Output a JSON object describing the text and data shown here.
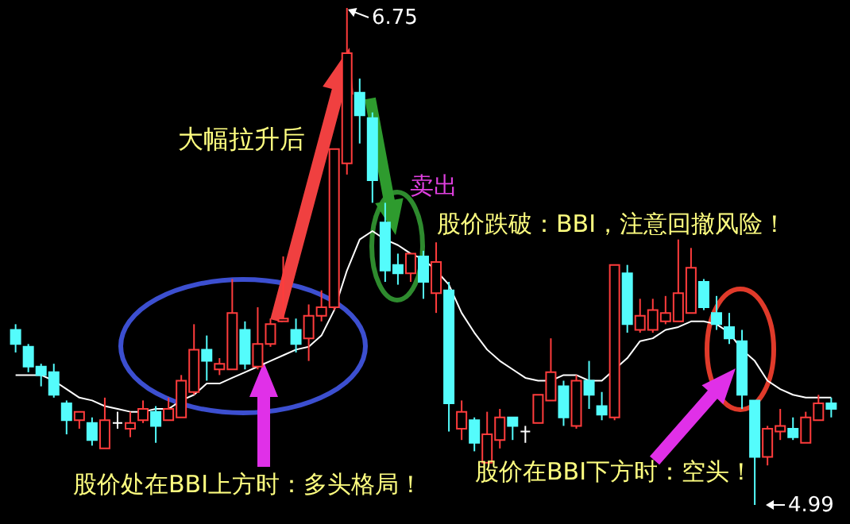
{
  "chart_data": {
    "type": "candlestick",
    "categories": [
      null,
      null,
      null,
      null,
      null,
      null,
      null,
      null,
      null,
      null,
      null,
      null,
      null,
      null,
      null,
      null,
      null,
      null,
      null,
      null,
      null,
      null,
      null,
      null,
      null,
      null,
      null,
      null,
      null,
      null,
      null,
      null,
      null,
      null,
      null,
      null,
      null,
      null,
      null,
      null,
      null,
      null,
      null,
      null,
      null,
      null,
      null,
      null,
      null,
      null,
      null,
      null,
      null,
      null,
      null,
      null,
      null,
      null,
      null,
      null,
      null,
      null,
      null,
      null,
      null
    ],
    "ohlc": [
      [
        5.61,
        5.63,
        5.53,
        5.56
      ],
      [
        5.55,
        5.56,
        5.46,
        5.48
      ],
      [
        5.48,
        5.49,
        5.41,
        5.45
      ],
      [
        5.46,
        5.49,
        5.37,
        5.38
      ],
      [
        5.35,
        5.36,
        5.24,
        5.29
      ],
      [
        5.29,
        5.32,
        5.26,
        5.32
      ],
      [
        5.28,
        5.3,
        5.2,
        5.22
      ],
      [
        5.19,
        5.37,
        5.19,
        5.29
      ],
      [
        5.28,
        5.32,
        5.26,
        5.28
      ],
      [
        5.26,
        5.32,
        5.23,
        5.28
      ],
      [
        5.29,
        5.36,
        5.28,
        5.33
      ],
      [
        5.32,
        5.34,
        5.21,
        5.27
      ],
      [
        5.29,
        5.37,
        5.29,
        5.33
      ],
      [
        5.3,
        5.45,
        5.3,
        5.43
      ],
      [
        5.39,
        5.63,
        5.38,
        5.54
      ],
      [
        5.54,
        5.59,
        5.43,
        5.5
      ],
      [
        5.47,
        5.51,
        5.45,
        5.49
      ],
      [
        5.47,
        5.79,
        5.47,
        5.67
      ],
      [
        5.61,
        5.64,
        5.47,
        5.49
      ],
      [
        5.48,
        5.69,
        5.47,
        5.56
      ],
      [
        5.56,
        5.65,
        5.55,
        5.63
      ],
      [
        5.64,
        5.87,
        5.64,
        5.65
      ],
      [
        5.61,
        5.65,
        5.53,
        5.56
      ],
      [
        5.58,
        5.7,
        5.5,
        5.66
      ],
      [
        5.66,
        5.75,
        5.64,
        5.69
      ],
      [
        5.69,
        6.25,
        5.68,
        6.25
      ],
      [
        6.2,
        6.75,
        6.16,
        6.59
      ],
      [
        6.45,
        6.5,
        6.27,
        6.37
      ],
      [
        6.36,
        6.38,
        6.06,
        6.14
      ],
      [
        5.99,
        6.06,
        5.78,
        5.82
      ],
      [
        5.84,
        5.88,
        5.77,
        5.81
      ],
      [
        5.81,
        5.88,
        5.78,
        5.88
      ],
      [
        5.87,
        5.89,
        5.72,
        5.78
      ],
      [
        5.74,
        5.92,
        5.67,
        5.85
      ],
      [
        5.75,
        5.78,
        5.25,
        5.35
      ],
      [
        5.26,
        5.36,
        5.22,
        5.32
      ],
      [
        5.29,
        5.3,
        5.18,
        5.21
      ],
      [
        5.14,
        5.32,
        5.14,
        5.24
      ],
      [
        5.22,
        5.33,
        5.19,
        5.3
      ],
      [
        5.3,
        5.3,
        5.22,
        5.27
      ],
      [
        5.25,
        5.27,
        5.21,
        5.25
      ],
      [
        5.28,
        5.38,
        5.28,
        5.38
      ],
      [
        5.36,
        5.58,
        5.36,
        5.46
      ],
      [
        5.41,
        5.43,
        5.27,
        5.3
      ],
      [
        5.27,
        5.45,
        5.26,
        5.43
      ],
      [
        5.43,
        5.5,
        5.33,
        5.38
      ],
      [
        5.34,
        5.39,
        5.29,
        5.31
      ],
      [
        5.3,
        5.84,
        5.29,
        5.84
      ],
      [
        5.81,
        5.84,
        5.6,
        5.63
      ],
      [
        5.61,
        5.72,
        5.6,
        5.66
      ],
      [
        5.61,
        5.72,
        5.6,
        5.68
      ],
      [
        5.64,
        5.73,
        5.63,
        5.67
      ],
      [
        5.64,
        5.93,
        5.64,
        5.74
      ],
      [
        5.67,
        5.9,
        5.67,
        5.83
      ],
      [
        5.78,
        5.79,
        5.68,
        5.69
      ],
      [
        5.67,
        5.73,
        5.61,
        5.63
      ],
      [
        5.62,
        5.67,
        5.56,
        5.58
      ],
      [
        5.57,
        5.61,
        5.33,
        5.38
      ],
      [
        5.36,
        5.36,
        4.99,
        5.16
      ],
      [
        5.16,
        5.27,
        5.13,
        5.26
      ],
      [
        5.25,
        5.33,
        5.22,
        5.27
      ],
      [
        5.26,
        5.3,
        5.22,
        5.23
      ],
      [
        5.21,
        5.32,
        5.21,
        5.3
      ],
      [
        5.29,
        5.38,
        5.29,
        5.35
      ],
      [
        5.35,
        5.37,
        5.3,
        5.33
      ]
    ],
    "colors": [
      "#54fcfc",
      "#54fcfc",
      "#54fcfc",
      "#54fcfc",
      "#54fcfc",
      "#ff3c3c",
      "#54fcfc",
      "#ff3c3c",
      "#ffffff",
      "#ff3c3c",
      "#ff3c3c",
      "#54fcfc",
      "#ff3c3c",
      "#ff3c3c",
      "#ff3c3c",
      "#54fcfc",
      "#ff3c3c",
      "#ff3c3c",
      "#54fcfc",
      "#ff3c3c",
      "#ff3c3c",
      "#ff3c3c",
      "#54fcfc",
      "#ff3c3c",
      "#ff3c3c",
      "#ff3c3c",
      "#ff3c3c",
      "#54fcfc",
      "#54fcfc",
      "#54fcfc",
      "#54fcfc",
      "#ff3c3c",
      "#54fcfc",
      "#ff3c3c",
      "#54fcfc",
      "#ff3c3c",
      "#54fcfc",
      "#ff3c3c",
      "#ff3c3c",
      "#54fcfc",
      "#ffffff",
      "#ff3c3c",
      "#ff3c3c",
      "#54fcfc",
      "#ff3c3c",
      "#54fcfc",
      "#54fcfc",
      "#ff3c3c",
      "#54fcfc",
      "#ff3c3c",
      "#ff3c3c",
      "#ff3c3c",
      "#ff3c3c",
      "#ff3c3c",
      "#54fcfc",
      "#54fcfc",
      "#54fcfc",
      "#54fcfc",
      "#54fcfc",
      "#ff3c3c",
      "#ff3c3c",
      "#54fcfc",
      "#ff3c3c",
      "#ff3c3c",
      "#54fcfc"
    ],
    "series": [
      {
        "type": "line",
        "color": "#ffffff",
        "values": [
          5.45,
          5.45,
          5.45,
          5.43,
          5.4,
          5.37,
          5.36,
          5.34,
          5.33,
          5.32,
          5.32,
          5.33,
          5.33,
          5.36,
          5.38,
          5.42,
          5.42,
          5.44,
          5.46,
          5.48,
          5.5,
          5.52,
          5.54,
          5.55,
          5.59,
          5.68,
          5.82,
          5.93,
          5.96,
          5.93,
          5.91,
          5.88,
          5.86,
          5.82,
          5.77,
          5.67,
          5.6,
          5.54,
          5.5,
          5.47,
          5.44,
          5.43,
          5.43,
          5.45,
          5.45,
          5.43,
          5.43,
          5.47,
          5.51,
          5.57,
          5.58,
          5.61,
          5.62,
          5.64,
          5.64,
          5.63,
          5.6,
          5.54,
          5.5,
          5.43,
          5.4,
          5.38,
          5.37,
          5.37,
          5.37
        ]
      }
    ],
    "annotations": [
      "大幅拉升后",
      "卖出",
      "股价跌破：BBI，注意回撤风险！",
      "股价处在BBI上方时：多头格局！",
      "股价在BBI下方时：空头！",
      "6.75",
      "4.99"
    ]
  }
}
